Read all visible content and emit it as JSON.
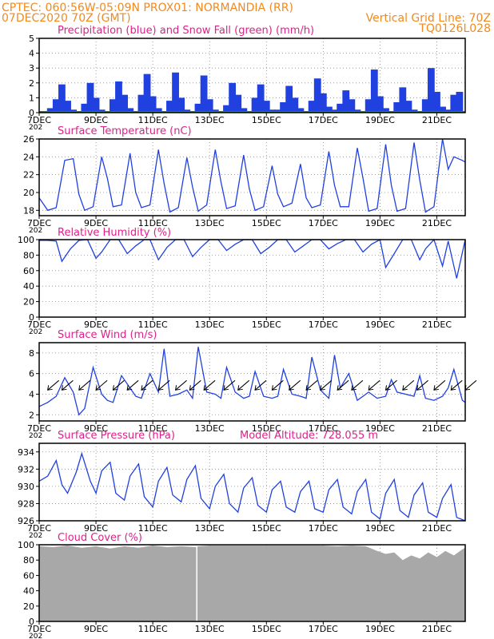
{
  "header": {
    "line1_left": "CPTEC:   060:56W-05:09N   PROX01: NORMANDIA (RR)",
    "line2_left": "07DEC2020 70Z (GMT)",
    "line2_right": "Vertical Grid Line: 70Z",
    "line3_right": "TQ0126L028"
  },
  "colors": {
    "header": "#f08a1e",
    "title": "#e0208a",
    "series": "#2040e0",
    "snow": "#10a020",
    "cloud": "#a8a8a8",
    "axis": "#000000"
  },
  "x_axis": {
    "start_day": 7,
    "end_day": 22,
    "tick_labels": [
      "7DEC",
      "9DEC",
      "11DEC",
      "13DEC",
      "15DEC",
      "17DEC",
      "19DEC",
      "21DEC"
    ],
    "year_stub": "202"
  },
  "chart_data": [
    {
      "id": "precip",
      "type": "bar",
      "title": "Precipitation (blue) and Snow Fall (green) (mm/h)",
      "ylim": [
        0,
        5
      ],
      "yticks": [
        "0",
        "1",
        "2",
        "3",
        "4",
        "5"
      ],
      "x_days": [
        7.2,
        7.4,
        7.6,
        7.8,
        8.0,
        8.2,
        8.4,
        8.6,
        8.8,
        9.0,
        9.2,
        9.4,
        9.6,
        9.8,
        10.0,
        10.2,
        10.4,
        10.6,
        10.8,
        11.0,
        11.2,
        11.4,
        11.6,
        11.8,
        12.0,
        12.2,
        12.4,
        12.6,
        12.8,
        13.0,
        13.2,
        13.4,
        13.6,
        13.8,
        14.0,
        14.2,
        14.4,
        14.6,
        14.8,
        15.0,
        15.2,
        15.4,
        15.6,
        15.8,
        16.0,
        16.2,
        16.4,
        16.6,
        16.8,
        17.0,
        17.2,
        17.4,
        17.6,
        17.8,
        18.0,
        18.2,
        18.4,
        18.6,
        18.8,
        19.0,
        19.2,
        19.4,
        19.6,
        19.8,
        20.0,
        20.2,
        20.4,
        20.6,
        20.8,
        21.0,
        21.2,
        21.4,
        21.6,
        21.8
      ],
      "values": [
        0.1,
        0.3,
        0.9,
        1.9,
        0.8,
        0.2,
        0.1,
        0.6,
        2.0,
        1.0,
        0.2,
        0.1,
        0.9,
        2.1,
        1.2,
        0.3,
        0.1,
        1.2,
        2.6,
        1.1,
        0.3,
        0.1,
        0.8,
        2.7,
        1.0,
        0.2,
        0.1,
        0.6,
        2.5,
        0.9,
        0.2,
        0.1,
        0.5,
        2.0,
        1.2,
        0.3,
        0.1,
        1.0,
        1.9,
        0.8,
        0.2,
        0.2,
        0.7,
        1.8,
        1.0,
        0.3,
        0.1,
        0.8,
        2.3,
        1.3,
        0.4,
        0.2,
        0.6,
        1.5,
        0.9,
        0.2,
        0.1,
        0.9,
        2.9,
        1.1,
        0.3,
        0.1,
        0.7,
        1.7,
        0.8,
        0.2,
        0.1,
        0.9,
        3.0,
        1.4,
        0.4,
        0.2,
        1.2,
        1.4
      ],
      "snow": 0
    },
    {
      "id": "temp",
      "type": "line",
      "title": "Surface Temperature (nC)",
      "ylim": [
        17.4,
        26
      ],
      "yticks": [
        "18",
        "20",
        "22",
        "24",
        "26"
      ],
      "x_days": [
        7.0,
        7.3,
        7.6,
        7.9,
        8.2,
        8.4,
        8.6,
        8.9,
        9.2,
        9.4,
        9.6,
        9.9,
        10.2,
        10.4,
        10.6,
        10.9,
        11.2,
        11.4,
        11.6,
        11.9,
        12.2,
        12.4,
        12.6,
        12.9,
        13.2,
        13.4,
        13.6,
        13.9,
        14.2,
        14.4,
        14.6,
        14.9,
        15.2,
        15.4,
        15.6,
        15.9,
        16.2,
        16.4,
        16.6,
        16.9,
        17.2,
        17.4,
        17.6,
        17.9,
        18.2,
        18.4,
        18.6,
        18.9,
        19.2,
        19.4,
        19.6,
        19.9,
        20.2,
        20.4,
        20.6,
        20.9,
        21.2,
        21.4,
        21.6,
        21.9,
        22.0
      ],
      "values": [
        19.4,
        18.0,
        18.3,
        23.6,
        23.8,
        19.8,
        18.0,
        18.4,
        24.0,
        21.6,
        18.4,
        18.6,
        24.4,
        20.0,
        18.3,
        18.6,
        24.8,
        21.0,
        17.8,
        18.3,
        23.9,
        20.6,
        17.9,
        18.6,
        24.8,
        21.2,
        18.2,
        18.5,
        24.2,
        20.4,
        18.0,
        18.4,
        23.0,
        19.8,
        18.4,
        18.8,
        23.2,
        19.4,
        18.3,
        18.6,
        24.6,
        20.8,
        18.4,
        18.4,
        25.0,
        21.6,
        17.9,
        18.2,
        25.4,
        20.8,
        17.9,
        18.2,
        25.6,
        21.4,
        17.8,
        18.4,
        26.0,
        22.6,
        24.0,
        23.6,
        23.4
      ]
    },
    {
      "id": "rh",
      "type": "line",
      "title": "Relative Humidity (%)",
      "ylim": [
        0,
        100
      ],
      "yticks": [
        "0",
        "20",
        "40",
        "60",
        "80",
        "100"
      ],
      "x_days": [
        7.0,
        7.3,
        7.6,
        7.8,
        8.1,
        8.4,
        8.7,
        9.0,
        9.2,
        9.5,
        9.8,
        10.1,
        10.4,
        10.7,
        10.9,
        11.2,
        11.5,
        11.8,
        12.1,
        12.4,
        12.7,
        13.0,
        13.3,
        13.6,
        13.9,
        14.2,
        14.5,
        14.8,
        15.1,
        15.4,
        15.7,
        16.0,
        16.3,
        16.6,
        16.9,
        17.2,
        17.5,
        17.8,
        18.1,
        18.4,
        18.7,
        19.0,
        19.2,
        19.5,
        19.8,
        20.1,
        20.4,
        20.6,
        20.9,
        21.2,
        21.4,
        21.7,
        22.0
      ],
      "values": [
        99,
        99,
        98,
        72,
        88,
        99,
        100,
        76,
        84,
        100,
        100,
        82,
        92,
        100,
        100,
        74,
        90,
        100,
        100,
        78,
        90,
        100,
        100,
        86,
        94,
        100,
        100,
        82,
        90,
        100,
        100,
        84,
        92,
        100,
        100,
        88,
        95,
        100,
        100,
        84,
        94,
        100,
        64,
        82,
        100,
        100,
        74,
        88,
        100,
        66,
        98,
        50,
        100
      ]
    },
    {
      "id": "wind",
      "type": "line",
      "title": "Surface Wind (m/s)",
      "ylim": [
        1.4,
        9
      ],
      "yticks": [
        "2",
        "4",
        "6",
        "8"
      ],
      "x_days": [
        7.0,
        7.3,
        7.6,
        7.9,
        8.2,
        8.4,
        8.6,
        8.9,
        9.2,
        9.4,
        9.6,
        9.9,
        10.2,
        10.4,
        10.6,
        10.9,
        11.2,
        11.4,
        11.6,
        11.9,
        12.2,
        12.4,
        12.6,
        12.9,
        13.2,
        13.4,
        13.6,
        13.9,
        14.2,
        14.4,
        14.6,
        14.9,
        15.2,
        15.4,
        15.6,
        15.9,
        16.2,
        16.4,
        16.6,
        16.9,
        17.2,
        17.4,
        17.6,
        17.9,
        18.2,
        18.4,
        18.6,
        18.9,
        19.2,
        19.4,
        19.6,
        19.9,
        20.2,
        20.4,
        20.6,
        20.9,
        21.2,
        21.4,
        21.6,
        21.9,
        22.0
      ],
      "values": [
        2.8,
        3.2,
        3.8,
        5.6,
        4.2,
        2.0,
        2.6,
        6.6,
        4.0,
        3.4,
        3.2,
        5.8,
        4.6,
        3.8,
        3.6,
        6.0,
        4.2,
        8.4,
        3.8,
        4.0,
        4.4,
        3.6,
        8.6,
        4.2,
        4.0,
        3.6,
        6.6,
        4.2,
        3.6,
        3.8,
        6.2,
        3.8,
        3.6,
        3.8,
        6.4,
        4.0,
        3.8,
        3.6,
        7.6,
        4.4,
        3.6,
        7.8,
        4.6,
        6.0,
        3.4,
        3.8,
        4.2,
        3.6,
        3.8,
        5.4,
        4.2,
        4.0,
        3.8,
        5.8,
        3.6,
        3.4,
        3.8,
        4.6,
        6.4,
        3.4,
        3.2
      ],
      "arrows_days": [
        7.3,
        7.8,
        8.4,
        9.0,
        9.6,
        10.1,
        10.6,
        11.2,
        11.8,
        12.3,
        12.8,
        13.5,
        14.0,
        14.6,
        15.2,
        15.8,
        16.4,
        16.9,
        17.5,
        18.0,
        18.6,
        19.2,
        19.8,
        20.3,
        20.9,
        21.5,
        22.0
      ]
    },
    {
      "id": "pressure",
      "type": "line",
      "title": "Surface Pressure (hPa)",
      "subtitle": "Model Altitude: 728.055  m",
      "ylim": [
        926,
        935
      ],
      "yticks": [
        "926",
        "928",
        "930",
        "932",
        "934"
      ],
      "x_days": [
        7.0,
        7.3,
        7.6,
        7.8,
        8.0,
        8.3,
        8.5,
        8.8,
        9.0,
        9.2,
        9.5,
        9.7,
        10.0,
        10.2,
        10.5,
        10.7,
        11.0,
        11.2,
        11.5,
        11.7,
        12.0,
        12.2,
        12.5,
        12.7,
        13.0,
        13.2,
        13.5,
        13.7,
        14.0,
        14.2,
        14.5,
        14.7,
        15.0,
        15.2,
        15.5,
        15.7,
        16.0,
        16.2,
        16.5,
        16.7,
        17.0,
        17.2,
        17.5,
        17.7,
        18.0,
        18.2,
        18.5,
        18.7,
        19.0,
        19.2,
        19.5,
        19.7,
        20.0,
        20.2,
        20.5,
        20.7,
        21.0,
        21.2,
        21.5,
        21.7,
        22.0
      ],
      "values": [
        930.6,
        931.2,
        933.0,
        930.2,
        929.2,
        931.6,
        933.8,
        930.6,
        929.2,
        931.8,
        932.8,
        929.2,
        928.4,
        931.2,
        932.6,
        928.8,
        927.6,
        930.6,
        932.2,
        929.0,
        928.2,
        930.8,
        932.4,
        928.6,
        927.4,
        930.0,
        931.4,
        928.0,
        927.0,
        929.8,
        931.0,
        927.8,
        927.0,
        929.6,
        930.6,
        927.6,
        927.0,
        929.4,
        930.6,
        927.4,
        927.0,
        929.6,
        930.8,
        927.6,
        926.8,
        929.4,
        930.8,
        927.0,
        926.2,
        929.2,
        930.8,
        927.2,
        926.4,
        929.0,
        930.4,
        927.0,
        926.4,
        928.6,
        930.2,
        926.4,
        926.0
      ]
    },
    {
      "id": "cloud",
      "type": "area",
      "title": "Cloud Cover (%)",
      "ylim": [
        0,
        100
      ],
      "yticks": [
        "0",
        "20",
        "40",
        "60",
        "80",
        "100"
      ],
      "x_days": [
        7.0,
        7.5,
        8.0,
        8.5,
        9.0,
        9.5,
        10.0,
        10.5,
        11.0,
        11.5,
        12.0,
        12.5,
        12.6,
        13.0,
        13.5,
        14.0,
        14.5,
        15.0,
        15.5,
        16.0,
        16.5,
        17.0,
        17.5,
        18.0,
        18.5,
        18.9,
        19.2,
        19.5,
        19.8,
        20.1,
        20.4,
        20.7,
        21.0,
        21.3,
        21.6,
        21.9,
        22.0
      ],
      "values": [
        98,
        97,
        99,
        96,
        98,
        95,
        98,
        96,
        99,
        97,
        98,
        97,
        98,
        99,
        99,
        99,
        99,
        99,
        99,
        99,
        99,
        99,
        98,
        99,
        98,
        92,
        88,
        90,
        80,
        86,
        82,
        90,
        84,
        92,
        86,
        94,
        96
      ],
      "gap_day": 12.55
    }
  ]
}
